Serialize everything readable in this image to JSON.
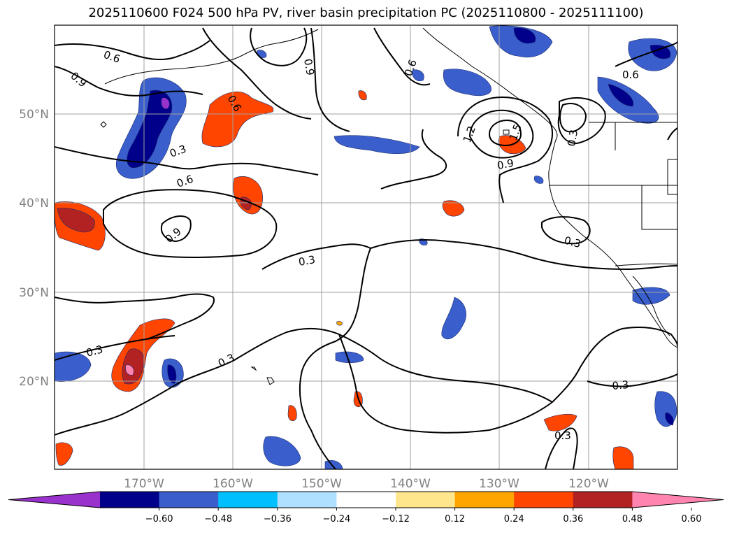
{
  "title": "2025110600 F024 500 hPa PV, river basin precipitation PC (2025110800 - 2025111100)",
  "lat_labels": [
    "50°N",
    "40°N",
    "30°N",
    "20°N"
  ],
  "lon_labels": [
    "170°W",
    "160°W",
    "150°W",
    "140°W",
    "130°W",
    "120°W"
  ],
  "contour_labels": [
    "0.6",
    "0.9",
    "0.6",
    "0.9",
    "0.6",
    "0.3",
    "0.6",
    "0.9",
    "0.3",
    "0.3",
    "0.3",
    "1.2",
    "1.5",
    "0.9",
    "0.3",
    "0.3",
    "0.6",
    "0.3",
    "0.3"
  ],
  "colorbar": {
    "ticks": [
      "−0.60",
      "−0.48",
      "−0.36",
      "−0.24",
      "−0.12",
      "0.12",
      "0.24",
      "0.36",
      "0.48",
      "0.60"
    ],
    "colors": [
      "#9932cc",
      "#00008b",
      "#3a5fcd",
      "#00bfff",
      "#b0e0ff",
      "#ffffff",
      "#ffe68c",
      "#ffa500",
      "#ff4500",
      "#b22222",
      "#ff85b0"
    ]
  }
}
